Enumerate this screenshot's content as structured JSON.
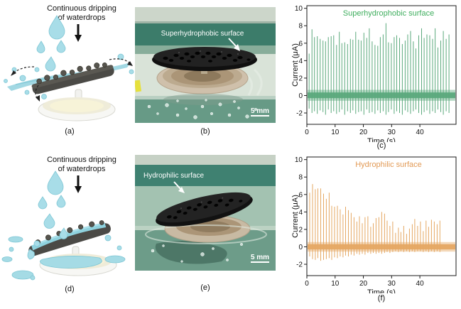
{
  "figure": {
    "panels": {
      "a": {
        "caption": "(a)",
        "label_line1": "Continuous dripping",
        "label_line2": "of waterdrops"
      },
      "b": {
        "caption": "(b)",
        "surface_label": "Superhydrophobic surface",
        "scale_bar": "5 mm"
      },
      "c": {
        "caption": "(c)"
      },
      "d": {
        "caption": "(d)",
        "label_line1": "Continuous dripping",
        "label_line2": "of waterdrops"
      },
      "e": {
        "caption": "(e)",
        "surface_label": "Hydrophilic surface",
        "scale_bar": "5 mm"
      },
      "f": {
        "caption": "(f)"
      }
    }
  },
  "palette": {
    "superhydrophobic_green": "#5ba97c",
    "green_title": "#3fae5e",
    "hydrophilic_orange": "#e5a863",
    "orange_title": "#e29a55",
    "water_blue": "#a2d8e3",
    "photo_teal": "#3f8171"
  },
  "chart_data": [
    {
      "type": "line",
      "title": "Superhydrophobic surface",
      "title_color": "#3fae5e",
      "line_color": "#5ba97c",
      "xlabel": "Time (s)",
      "ylabel": "Current (μA)",
      "xlim": [
        0,
        52.8
      ],
      "ylim": [
        -3.3,
        10.3
      ],
      "xticks": [
        0,
        10,
        20,
        30,
        40
      ],
      "yticks": [
        -2,
        0,
        2,
        4,
        6,
        8,
        10
      ],
      "grid": false,
      "legend": "none (title inside plot)",
      "baseline": 0,
      "baseline_band": {
        "solid": [
          -0.3,
          0.35
        ],
        "soft": [
          -0.6,
          0.65
        ]
      },
      "t": [
        0.8,
        1.8,
        2.7,
        3.7,
        4.7,
        5.7,
        6.6,
        7.6,
        8.6,
        9.5,
        10.5,
        11.5,
        12.4,
        13.4,
        14.4,
        15.4,
        16.3,
        17.3,
        18.3,
        19.2,
        20.2,
        21.2,
        22.1,
        23.1,
        24.1,
        25.1,
        26.0,
        27.0,
        28.0,
        28.9,
        29.9,
        30.9,
        31.8,
        32.8,
        33.8,
        34.8,
        35.7,
        36.7,
        37.7,
        38.6,
        39.6,
        40.6,
        41.5,
        42.5,
        43.5,
        44.5,
        45.4,
        46.4,
        47.4,
        48.3,
        49.3,
        50.3
      ],
      "peak": [
        4.8,
        7.6,
        6.7,
        6.8,
        6.5,
        6.3,
        6.2,
        6.7,
        6.8,
        6.9,
        5.8,
        7.3,
        6.0,
        6.1,
        5.9,
        6.5,
        6.4,
        7.3,
        6.4,
        6.3,
        7.2,
        6.6,
        7.7,
        6.2,
        5.8,
        5.7,
        6.7,
        7.0,
        8.3,
        6.1,
        6.0,
        6.7,
        6.9,
        6.6,
        5.9,
        6.3,
        7.0,
        7.4,
        6.2,
        5.4,
        6.9,
        7.7,
        6.6,
        7.0,
        6.9,
        6.5,
        7.7,
        5.5,
        6.3,
        7.4,
        6.5,
        7.0
      ],
      "trough": [
        -1.5,
        -2.0,
        -1.8,
        -2.1,
        -1.7,
        -1.9,
        -2.2,
        -1.6,
        -2.0,
        -1.8,
        -2.1,
        -1.9,
        -1.6,
        -2.2,
        -1.8,
        -2.0,
        -1.7,
        -2.1,
        -1.9,
        -1.8,
        -2.2,
        -1.6,
        -2.0,
        -1.9,
        -2.1,
        -1.7,
        -2.0,
        -1.8,
        -2.2,
        -1.9,
        -1.6,
        -2.1,
        -1.8,
        -2.0,
        -2.2,
        -1.7,
        -1.9,
        -2.1,
        -1.8,
        -1.6,
        -2.0,
        -2.2,
        -1.9,
        -1.7,
        -2.1,
        -1.8,
        -2.0,
        -1.6,
        -1.9,
        -2.2,
        -1.8,
        -2.0
      ]
    },
    {
      "type": "line",
      "title": "Hydrophilic surface",
      "title_color": "#e29a55",
      "line_color": "#e5a863",
      "xlabel": "Time (s)",
      "ylabel": "Current (μA)",
      "xlim": [
        0,
        52.8
      ],
      "ylim": [
        -3.3,
        10.3
      ],
      "xticks": [
        0,
        10,
        20,
        30,
        40
      ],
      "yticks": [
        -2,
        0,
        2,
        4,
        6,
        8,
        10
      ],
      "grid": false,
      "legend": "none (title inside plot)",
      "baseline": 0,
      "baseline_band": {
        "solid": [
          -0.3,
          0.3
        ],
        "soft": [
          -0.55,
          0.55
        ]
      },
      "t": [
        1.0,
        2.0,
        3.0,
        3.9,
        4.9,
        5.9,
        6.9,
        7.9,
        8.8,
        9.8,
        10.8,
        11.8,
        12.8,
        13.7,
        14.7,
        15.7,
        16.7,
        17.7,
        18.6,
        19.6,
        20.6,
        21.6,
        22.6,
        23.5,
        24.5,
        25.5,
        26.5,
        27.5,
        28.4,
        29.4,
        30.4,
        31.4,
        32.4,
        33.3,
        34.3,
        35.3,
        36.3,
        37.3,
        38.2,
        39.2,
        40.2,
        41.2,
        42.2,
        43.1,
        44.1,
        45.1,
        46.1,
        47.1
      ],
      "peak": [
        6.2,
        7.2,
        6.6,
        6.7,
        6.7,
        6.1,
        5.5,
        6.2,
        4.7,
        4.6,
        4.7,
        4.3,
        3.7,
        4.6,
        4.2,
        3.9,
        3.4,
        2.9,
        3.5,
        2.7,
        3.4,
        3.5,
        2.3,
        2.7,
        3.3,
        3.4,
        4.0,
        3.8,
        3.0,
        2.4,
        2.9,
        1.6,
        2.2,
        1.7,
        2.4,
        1.5,
        2.1,
        2.6,
        3.2,
        2.4,
        2.9,
        1.8,
        3.0,
        2.3,
        3.1,
        2.9,
        2.6,
        3.0
      ],
      "trough": [
        -1.1,
        -1.4,
        -1.5,
        -1.3,
        -1.6,
        -1.5,
        -1.4,
        -1.3,
        -1.5,
        -1.2,
        -1.3,
        -1.1,
        -1.2,
        -1.0,
        -1.1,
        -0.9,
        -1.0,
        -0.8,
        -0.9,
        -0.8,
        -0.9,
        -0.7,
        -0.8,
        -0.7,
        -0.8,
        -0.7,
        -0.8,
        -0.7,
        -0.6,
        -0.7,
        -0.6,
        -0.5,
        -0.6,
        -0.5,
        -0.6,
        -0.5,
        -0.6,
        -0.5,
        -0.6,
        -0.5,
        -0.5,
        -0.6,
        -0.5,
        -0.6,
        -0.5,
        -0.6,
        -0.5,
        -0.6
      ]
    }
  ]
}
